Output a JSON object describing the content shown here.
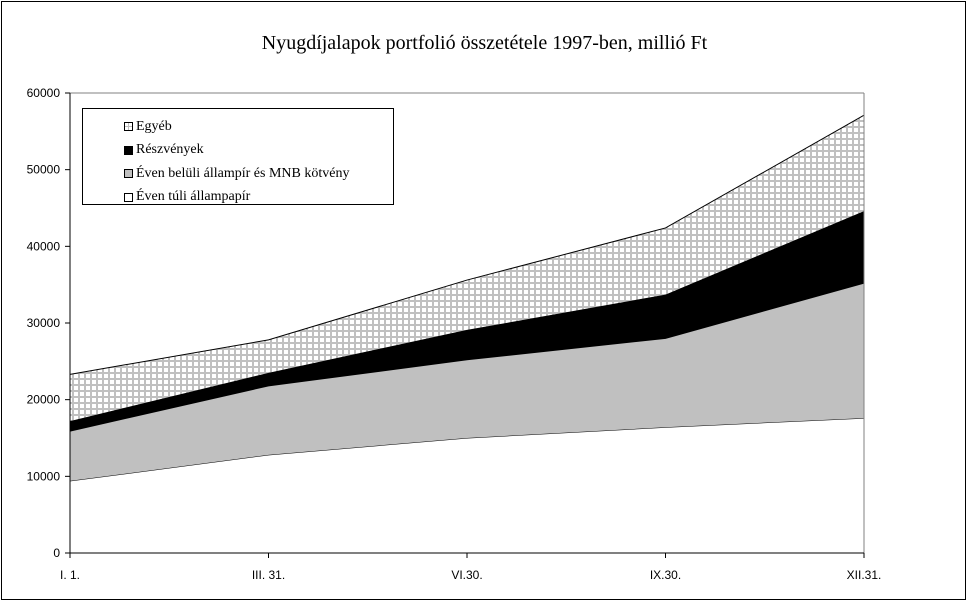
{
  "chart_data": {
    "type": "area",
    "stacked": true,
    "title": "Nyugdíjalapok portfolió összetétele 1997-ben, millió Ft",
    "xlabel": "",
    "ylabel": "",
    "categories": [
      "I. 1.",
      "III. 31.",
      "VI.30.",
      "IX.30.",
      "XII.31."
    ],
    "ylim": [
      0,
      60000
    ],
    "yticks": [
      0,
      10000,
      20000,
      30000,
      40000,
      50000,
      60000
    ],
    "ytick_labels": [
      "0",
      "10000",
      "20000",
      "30000",
      "40000",
      "50000",
      "60000"
    ],
    "grid": false,
    "legend_position": "top-left",
    "series": [
      {
        "name": "Éven túli állampapír",
        "values": [
          9400,
          12800,
          15000,
          16400,
          17600
        ],
        "color": "#ffffff"
      },
      {
        "name": "Éven belüli állampír és MNB kötvény",
        "values": [
          6500,
          9000,
          10200,
          11600,
          17600
        ],
        "color": "#c0c0c0"
      },
      {
        "name": "Részvények",
        "values": [
          1300,
          1700,
          3900,
          5700,
          9400
        ],
        "color": "#000000"
      },
      {
        "name": "Egyéb",
        "values": [
          6100,
          4300,
          6500,
          8700,
          12500
        ],
        "color": "crosshatch"
      }
    ],
    "legend_order": [
      3,
      2,
      1,
      0
    ]
  }
}
